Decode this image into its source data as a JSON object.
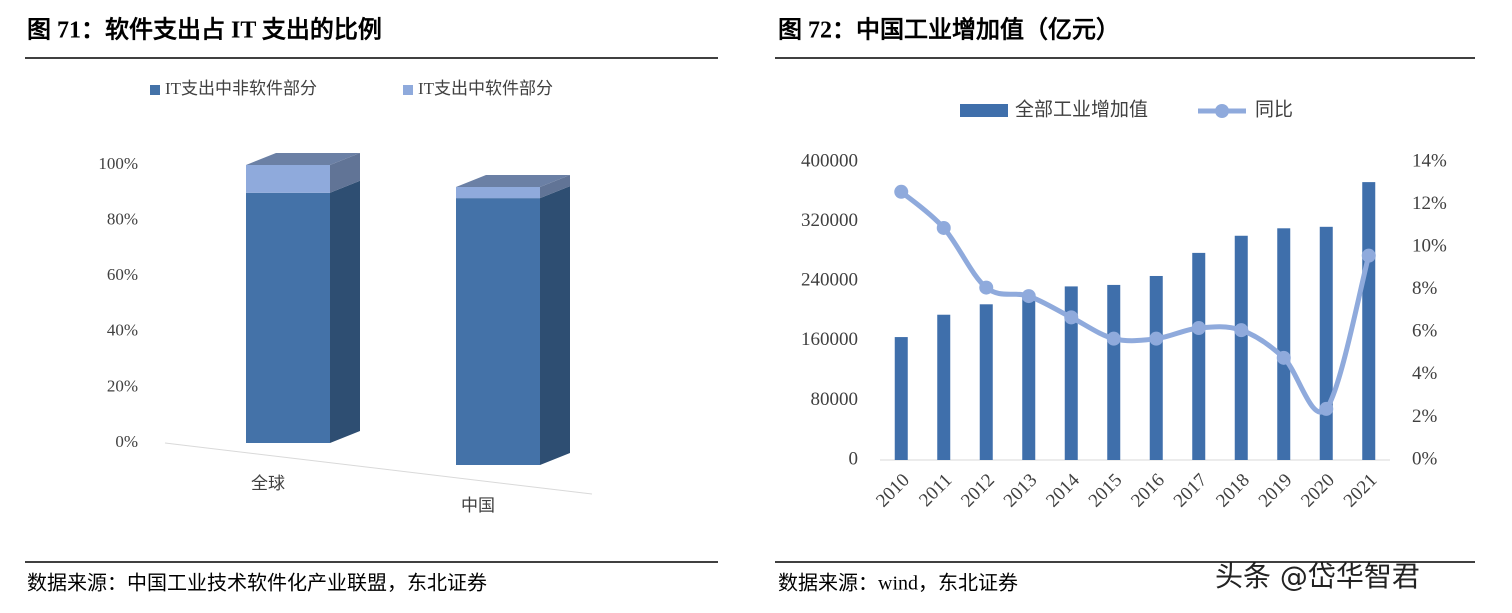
{
  "chart_data": [
    {
      "type": "bar3d",
      "title": "图 71：软件支出占 IT 支出的比例",
      "categories": [
        "全球",
        "中国"
      ],
      "series": [
        {
          "name": "IT支出中非软件部分",
          "color": "#4472a8",
          "values": [
            90,
            96
          ]
        },
        {
          "name": "IT支出中软件部分",
          "color": "#8faadc",
          "values": [
            10,
            4
          ]
        }
      ],
      "ylim": [
        0,
        100
      ],
      "yticks": [
        {
          "value": 0,
          "label": "0%"
        },
        {
          "value": 20,
          "label": "20%"
        },
        {
          "value": 40,
          "label": "40%"
        },
        {
          "value": 60,
          "label": "60%"
        },
        {
          "value": 80,
          "label": "80%"
        },
        {
          "value": 100,
          "label": "100%"
        }
      ],
      "grid": false,
      "source": "数据来源：中国工业技术软件化产业联盟，东北证券"
    },
    {
      "type": "bar_line",
      "title": "图 72：中国工业增加值（亿元）",
      "categories": [
        "2010",
        "2011",
        "2012",
        "2013",
        "2014",
        "2015",
        "2016",
        "2017",
        "2018",
        "2019",
        "2020",
        "2021"
      ],
      "series": [
        {
          "name": "全部工业增加值",
          "type": "bar",
          "color": "#3f6fab",
          "values": [
            165000,
            195000,
            209000,
            222000,
            233000,
            235000,
            247000,
            278000,
            301000,
            311000,
            313000,
            373000
          ]
        },
        {
          "name": "同比",
          "type": "line",
          "axis": "y2",
          "color": "#8faadc",
          "values": [
            12.6,
            10.9,
            8.1,
            7.7,
            6.7,
            5.7,
            5.7,
            6.2,
            6.1,
            4.8,
            2.4,
            9.6
          ]
        }
      ],
      "ylim": [
        0,
        400000
      ],
      "yticks": [
        0,
        80000,
        160000,
        240000,
        320000,
        400000
      ],
      "y2lim": [
        0,
        14
      ],
      "y2ticks": [
        {
          "value": 0,
          "label": "0%"
        },
        {
          "value": 2,
          "label": "2%"
        },
        {
          "value": 4,
          "label": "4%"
        },
        {
          "value": 6,
          "label": "6%"
        },
        {
          "value": 8,
          "label": "8%"
        },
        {
          "value": 10,
          "label": "10%"
        },
        {
          "value": 12,
          "label": "12%"
        },
        {
          "value": 14,
          "label": "14%"
        }
      ],
      "grid": false,
      "source": "数据来源：wind，东北证券"
    }
  ],
  "watermark": "头条 @岱华智君"
}
